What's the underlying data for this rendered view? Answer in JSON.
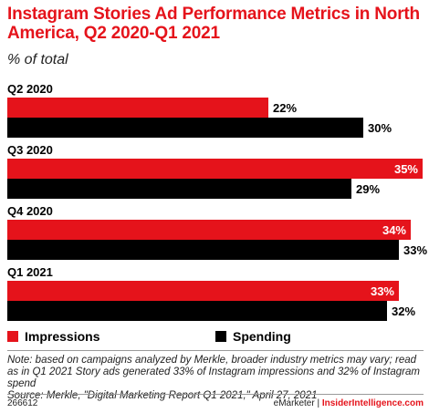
{
  "title": "Instagram Stories Ad Performance Metrics in North America, Q2 2020-Q1 2021",
  "subtitle": "% of total",
  "chart_data": {
    "type": "bar",
    "orientation": "horizontal",
    "categories": [
      "Q2 2020",
      "Q3 2020",
      "Q4 2020",
      "Q1 2021"
    ],
    "series": [
      {
        "name": "Impressions",
        "color": "#e5131b",
        "values": [
          22,
          35,
          34,
          33
        ]
      },
      {
        "name": "Spending",
        "color": "#000000",
        "values": [
          30,
          29,
          33,
          32
        ]
      }
    ],
    "value_labels_impressions": [
      "22%",
      "35%",
      "34%",
      "33%"
    ],
    "value_labels_spending": [
      "30%",
      "29%",
      "33%",
      "32%"
    ],
    "xlim": [
      0,
      35
    ],
    "grid": false,
    "legend_position": "bottom"
  },
  "legend": {
    "impressions": "Impressions",
    "spending": "Spending"
  },
  "note": "Note: based on campaigns analyzed by Merkle, broader industry metrics may vary; read as in Q1 2021 Story ads generated 33% of Instagram impressions and 32% of Instagram spend",
  "source": "Source: Merkle, \"Digital Marketing Report Q1 2021,\" April 27, 2021",
  "footer": {
    "id": "266612",
    "brand": "eMarketer",
    "divider": "|",
    "site": "InsiderIntelligence.com"
  }
}
